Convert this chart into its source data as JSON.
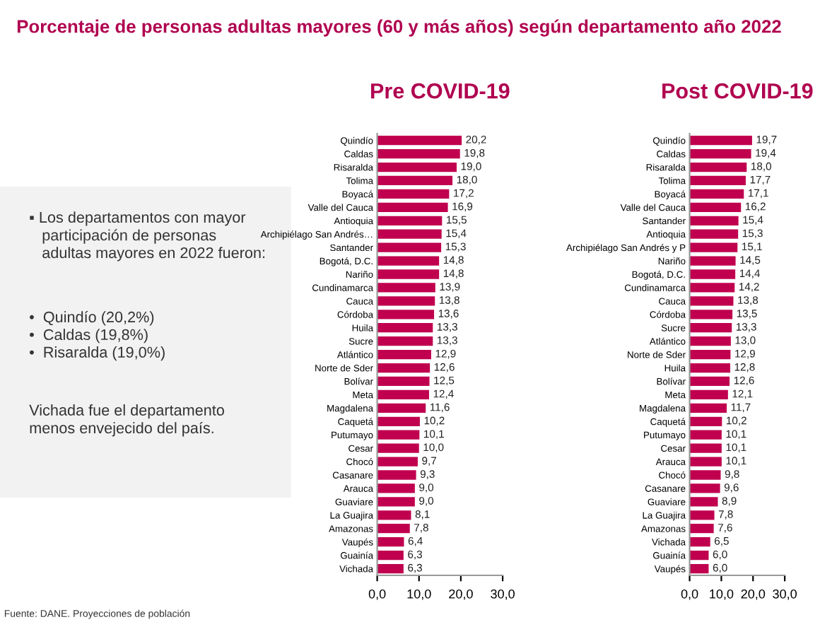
{
  "chart_data": [
    {
      "type": "other",
      "title": "Porcentaje de personas adultas mayores (60 y más años) según departamento año 2022",
      "annotations": [
        "▪ Los departamentos con mayor\n   participación de personas\n   adultas mayores en 2022 fueron:",
        "•  Quindío (20,2%)\n•  Caldas (19,8%)\n•  Risaralda (19,0%)",
        "Vichada fue el departamento\nmenos envejecido del país.",
        "Fuente: DANE. Proyecciones de población"
      ]
    },
    {
      "type": "bar",
      "orientation": "horizontal",
      "title": "Pre COVID-19",
      "color": "#c0004f",
      "categories": [
        "Quindío",
        "Caldas",
        "Risaralda",
        "Tolima",
        "Boyacá",
        "Valle del Cauca",
        "Antioquia",
        "Archipiélago San Andrés…",
        "Santander",
        "Bogotá, D.C.",
        "Nariño",
        "Cundinamarca",
        "Cauca",
        "Córdoba",
        "Huila",
        "Sucre",
        "Atlántico",
        "Norte de Sder",
        "Bolívar",
        "Meta",
        "Magdalena",
        "Caquetá",
        "Putumayo",
        "Cesar",
        "Chocó",
        "Casanare",
        "Arauca",
        "Guaviare",
        "La Guajira",
        "Amazonas",
        "Vaupés",
        "Guainía",
        "Vichada"
      ],
      "values": [
        20.2,
        19.8,
        19.0,
        18.0,
        17.2,
        16.9,
        15.5,
        15.4,
        15.3,
        14.8,
        14.8,
        13.9,
        13.8,
        13.6,
        13.3,
        13.3,
        12.9,
        12.6,
        12.5,
        12.4,
        11.6,
        10.2,
        10.1,
        10.0,
        9.7,
        9.3,
        9.0,
        9.0,
        8.1,
        7.8,
        6.4,
        6.3,
        6.3
      ],
      "value_labels": [
        "20,2",
        "19,8",
        "19,0",
        "18,0",
        "17,2",
        "16,9",
        "15,5",
        "15,4",
        "15,3",
        "14,8",
        "14,8",
        "13,9",
        "13,8",
        "13,6",
        "13,3",
        "13,3",
        "12,9",
        "12,6",
        "12,5",
        "12,4",
        "11,6",
        "10,2",
        "10,1",
        "10,0",
        "9,7",
        "9,3",
        "9,0",
        "9,0",
        "8,1",
        "7,8",
        "6,4",
        "6,3",
        "6,3"
      ],
      "xlim": [
        0,
        30
      ],
      "xticks": [
        {
          "value": 0,
          "label": "0,0"
        },
        {
          "value": 10,
          "label": "10,0"
        },
        {
          "value": 20,
          "label": "20,0"
        },
        {
          "value": 30,
          "label": "30,0"
        }
      ]
    },
    {
      "type": "bar",
      "orientation": "horizontal",
      "title": "Post COVID-19",
      "color": "#c0004f",
      "categories": [
        "Quindío",
        "Caldas",
        "Risaralda",
        "Tolima",
        "Boyacá",
        "Valle del Cauca",
        "Santander",
        "Antioquia",
        "Archipiélago San Andrés y P",
        "Nariño",
        "Bogotá, D.C.",
        "Cundinamarca",
        "Cauca",
        "Córdoba",
        "Sucre",
        "Atlántico",
        "Norte de Sder",
        "Huila",
        "Bolívar",
        "Meta",
        "Magdalena",
        "Caquetá",
        "Putumayo",
        "Cesar",
        "Arauca",
        "Chocó",
        "Casanare",
        "Guaviare",
        "La Guajira",
        "Amazonas",
        "Vichada",
        "Guainía",
        "Vaupés"
      ],
      "values": [
        19.7,
        19.4,
        18.0,
        17.7,
        17.1,
        16.2,
        15.4,
        15.3,
        15.1,
        14.5,
        14.4,
        14.2,
        13.8,
        13.5,
        13.3,
        13.0,
        12.9,
        12.8,
        12.6,
        12.1,
        11.7,
        10.2,
        10.1,
        10.1,
        10.1,
        9.8,
        9.6,
        8.9,
        7.8,
        7.6,
        6.5,
        6.0,
        6.0
      ],
      "value_labels": [
        "19,7",
        "19,4",
        "18,0",
        "17,7",
        "17,1",
        "16,2",
        "15,4",
        "15,3",
        "15,1",
        "14,5",
        "14,4",
        "14,2",
        "13,8",
        "13,5",
        "13,3",
        "13,0",
        "12,9",
        "12,8",
        "12,6",
        "12,1",
        "11,7",
        "10,2",
        "10,1",
        "10,1",
        "10,1",
        "9,8",
        "9,6",
        "8,9",
        "7,8",
        "7,6",
        "6,5",
        "6,0",
        "6,0"
      ],
      "xlim": [
        0,
        30
      ],
      "xticks": [
        {
          "value": 0,
          "label": "0,0"
        },
        {
          "value": 10,
          "label": "10,0"
        },
        {
          "value": 20,
          "label": "20,0"
        },
        {
          "value": 30,
          "label": "30,0"
        }
      ]
    }
  ]
}
